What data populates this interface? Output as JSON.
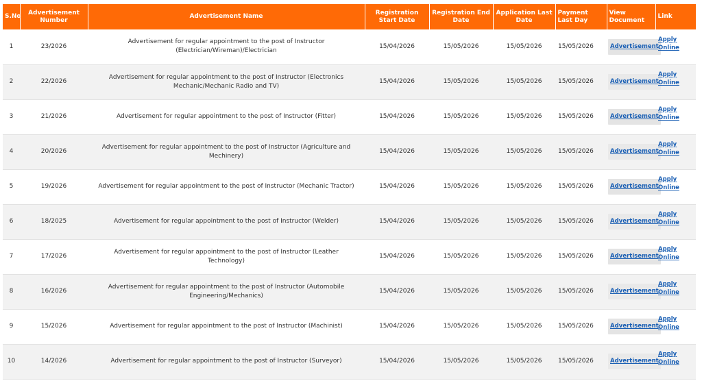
{
  "headers": {
    "sno": "S.No",
    "adv_number": "Advertisement Number",
    "adv_name": "Advertisement Name",
    "reg_start": "Registration Start Date",
    "reg_end": "Registration End Date",
    "app_last": "Application Last Date",
    "pay_last": "Payment Last Day",
    "view_doc": "View Document",
    "link": "Link"
  },
  "rows": [
    {
      "sno": "1",
      "number": "23/2026",
      "name": "Advertisement for regular appointment to the post of  Instructor (Electrician/Wireman)/Electrician",
      "reg_start": "15/04/2026",
      "reg_end": "15/05/2026",
      "app_last": "15/05/2026",
      "pay_last": "15/05/2026",
      "doc": "Advertisement",
      "apply1": "Apply",
      "apply2": "Online"
    },
    {
      "sno": "2",
      "number": "22/2026",
      "name": "Advertisement for regular appointment to the post of  Instructor (Electronics Mechanic/Mechanic Radio and TV)",
      "reg_start": "15/04/2026",
      "reg_end": "15/05/2026",
      "app_last": "15/05/2026",
      "pay_last": "15/05/2026",
      "doc": "Advertisement",
      "apply1": "Apply",
      "apply2": "Online"
    },
    {
      "sno": "3",
      "number": "21/2026",
      "name": "Advertisement for regular appointment to the post of  Instructor (Fitter)",
      "reg_start": "15/04/2026",
      "reg_end": "15/05/2026",
      "app_last": "15/05/2026",
      "pay_last": "15/05/2026",
      "doc": "Advertisement",
      "apply1": "Apply",
      "apply2": "Online"
    },
    {
      "sno": "4",
      "number": "20/2026",
      "name": "Advertisement for regular appointment to the post of  Instructor (Agriculture and Mechinery)",
      "reg_start": "15/04/2026",
      "reg_end": "15/05/2026",
      "app_last": "15/05/2026",
      "pay_last": "15/05/2026",
      "doc": "Advertisement",
      "apply1": "Apply",
      "apply2": "Online"
    },
    {
      "sno": "5",
      "number": "19/2026",
      "name": "Advertisement for regular appointment to the post of  Instructor (Mechanic Tractor)",
      "reg_start": "15/04/2026",
      "reg_end": "15/05/2026",
      "app_last": "15/05/2026",
      "pay_last": "15/05/2026",
      "doc": "Advertisement",
      "apply1": "Apply",
      "apply2": "Online"
    },
    {
      "sno": "6",
      "number": "18/2025",
      "name": "Advertisement for regular appointment to the post of  Instructor (Welder)",
      "reg_start": "15/04/2026",
      "reg_end": "15/05/2026",
      "app_last": "15/05/2026",
      "pay_last": "15/05/2026",
      "doc": "Advertisement",
      "apply1": "Apply",
      "apply2": "Online"
    },
    {
      "sno": "7",
      "number": "17/2026",
      "name": "Advertisement for regular appointment to the post of  Instructor (Leather Technology)",
      "reg_start": "15/04/2026",
      "reg_end": "15/05/2026",
      "app_last": "15/05/2026",
      "pay_last": "15/05/2026",
      "doc": "Advertisement",
      "apply1": "Apply",
      "apply2": "Online"
    },
    {
      "sno": "8",
      "number": "16/2026",
      "name": "Advertisement for regular appointment to the post of  Instructor (Automobile Engineering/Mechanics)",
      "reg_start": "15/04/2026",
      "reg_end": "15/05/2026",
      "app_last": "15/05/2026",
      "pay_last": "15/05/2026",
      "doc": "Advertisement",
      "apply1": "Apply",
      "apply2": "Online"
    },
    {
      "sno": "9",
      "number": "15/2026",
      "name": "Advertisement for regular appointment to the post of  Instructor (Machinist)",
      "reg_start": "15/04/2026",
      "reg_end": "15/05/2026",
      "app_last": "15/05/2026",
      "pay_last": "15/05/2026",
      "doc": "Advertisement",
      "apply1": "Apply",
      "apply2": "Online"
    },
    {
      "sno": "10",
      "number": "14/2026",
      "name": "Advertisement for regular appointment to the post of  Instructor (Surveyor)",
      "reg_start": "15/04/2026",
      "reg_end": "15/05/2026",
      "app_last": "15/05/2026",
      "pay_last": "15/05/2026",
      "doc": "Advertisement",
      "apply1": "Apply",
      "apply2": "Online"
    }
  ],
  "colors": {
    "header_bg": "#ff6a06",
    "header_text": "#ffffff",
    "link": "#1a5fb4",
    "row_alt": "#f2f2f2"
  }
}
